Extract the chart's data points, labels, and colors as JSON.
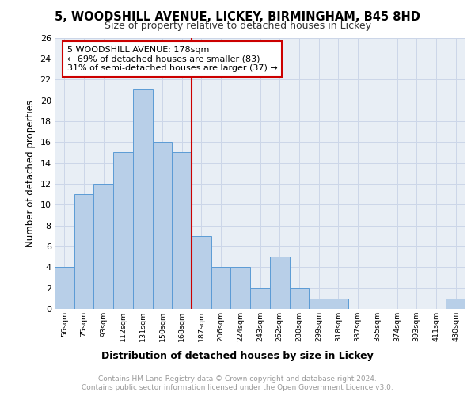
{
  "title1": "5, WOODSHILL AVENUE, LICKEY, BIRMINGHAM, B45 8HD",
  "title2": "Size of property relative to detached houses in Lickey",
  "xlabel": "Distribution of detached houses by size in Lickey",
  "ylabel": "Number of detached properties",
  "categories": [
    "56sqm",
    "75sqm",
    "93sqm",
    "112sqm",
    "131sqm",
    "150sqm",
    "168sqm",
    "187sqm",
    "206sqm",
    "224sqm",
    "243sqm",
    "262sqm",
    "280sqm",
    "299sqm",
    "318sqm",
    "337sqm",
    "355sqm",
    "374sqm",
    "393sqm",
    "411sqm",
    "430sqm"
  ],
  "values": [
    4,
    11,
    12,
    15,
    21,
    16,
    15,
    7,
    4,
    4,
    2,
    5,
    2,
    1,
    1,
    0,
    0,
    0,
    0,
    0,
    1
  ],
  "bar_color": "#b8cfe8",
  "bar_edge_color": "#5b9bd5",
  "reference_line_index": 7,
  "annotation_line1": "5 WOODSHILL AVENUE: 178sqm",
  "annotation_line2": "← 69% of detached houses are smaller (83)",
  "annotation_line3": "31% of semi-detached houses are larger (37) →",
  "annotation_box_color": "#cc0000",
  "annotation_bg": "#ffffff",
  "footer_line1": "Contains HM Land Registry data © Crown copyright and database right 2024.",
  "footer_line2": "Contains public sector information licensed under the Open Government Licence v3.0.",
  "ylim": [
    0,
    26
  ],
  "yticks": [
    0,
    2,
    4,
    6,
    8,
    10,
    12,
    14,
    16,
    18,
    20,
    22,
    24,
    26
  ],
  "grid_color": "#ccd6e8",
  "plot_bg": "#e8eef5",
  "title1_fontsize": 10.5,
  "title2_fontsize": 9
}
